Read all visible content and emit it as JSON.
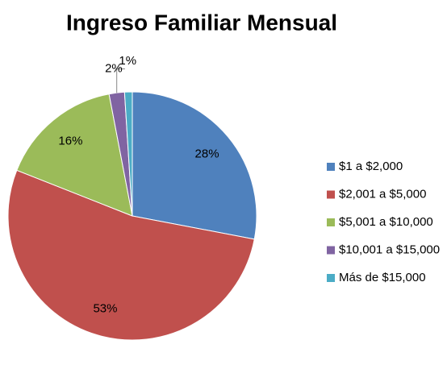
{
  "chart_data": {
    "type": "pie",
    "title": "Ingreso Familiar Mensual",
    "categories": [
      "$1 a $2,000",
      "$2,001 a $5,000",
      "$5,001 a $10,000",
      "$10,001 a $15,000",
      "Más de $15,000"
    ],
    "values": [
      28,
      53,
      16,
      2,
      1
    ],
    "value_labels": [
      "28%",
      "53%",
      "16%",
      "2%",
      "1%"
    ],
    "colors": [
      "#4f81bd",
      "#c0504d",
      "#9bbb59",
      "#8064a2",
      "#4bacc6"
    ],
    "legend": "right"
  }
}
